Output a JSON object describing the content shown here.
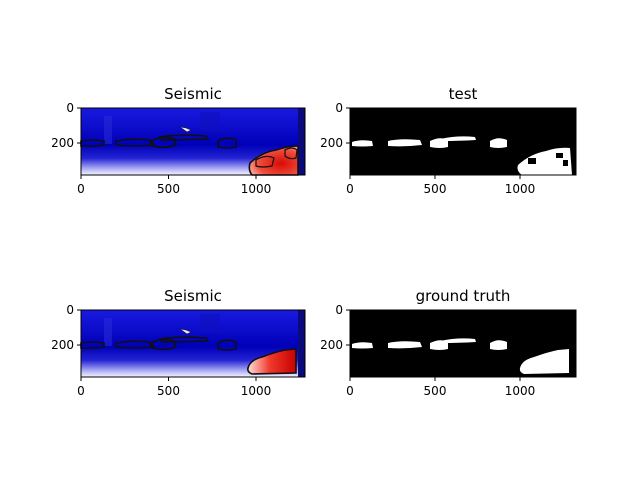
{
  "chart_data": [
    {
      "type": "heatmap",
      "title": "Seismic",
      "colormap": "seismic",
      "xlim": [
        0,
        1280
      ],
      "ylim": [
        380,
        0
      ],
      "xticks": [
        0,
        500,
        1000
      ],
      "yticks": [
        0,
        200
      ],
      "overlay": "mask-contour",
      "mask_source": "test"
    },
    {
      "type": "heatmap",
      "title": "test",
      "colormap": "gray",
      "xlim": [
        0,
        1280
      ],
      "ylim": [
        380,
        0
      ],
      "xticks": [
        0,
        500,
        1000
      ],
      "yticks": [
        0,
        200
      ],
      "mask_source": "test"
    },
    {
      "type": "heatmap",
      "title": "Seismic",
      "colormap": "seismic",
      "xlim": [
        0,
        1280
      ],
      "ylim": [
        380,
        0
      ],
      "xticks": [
        0,
        500,
        1000
      ],
      "yticks": [
        0,
        200
      ],
      "overlay": "mask-contour",
      "mask_source": "truth"
    },
    {
      "type": "heatmap",
      "title": "ground truth",
      "colormap": "gray",
      "xlim": [
        0,
        1280
      ],
      "ylim": [
        380,
        0
      ],
      "xticks": [
        0,
        500,
        1000
      ],
      "yticks": [
        0,
        200
      ],
      "mask_source": "truth"
    }
  ],
  "masks": {
    "truth": {
      "salt_bodies": [
        {
          "x": [
            0,
            120
          ],
          "y": [
            185,
            215
          ]
        },
        {
          "x": [
            200,
            350
          ],
          "y": [
            180,
            215
          ]
        },
        {
          "x": [
            380,
            490
          ],
          "y": [
            180,
            225
          ]
        },
        {
          "x": [
            480,
            660
          ],
          "y": [
            155,
            185
          ]
        },
        {
          "x": [
            790,
            890
          ],
          "y": [
            180,
            225
          ]
        },
        {
          "x": [
            950,
            1250
          ],
          "y": [
            220,
            380
          ]
        }
      ]
    },
    "test": {
      "salt_bodies": [
        {
          "x": [
            0,
            120
          ],
          "y": [
            185,
            215
          ]
        },
        {
          "x": [
            200,
            350
          ],
          "y": [
            180,
            215
          ]
        },
        {
          "x": [
            380,
            490
          ],
          "y": [
            180,
            225
          ]
        },
        {
          "x": [
            480,
            660
          ],
          "y": [
            155,
            185
          ]
        },
        {
          "x": [
            790,
            890
          ],
          "y": [
            180,
            225
          ]
        },
        {
          "x": [
            950,
            1270
          ],
          "y": [
            230,
            380
          ]
        }
      ]
    }
  }
}
